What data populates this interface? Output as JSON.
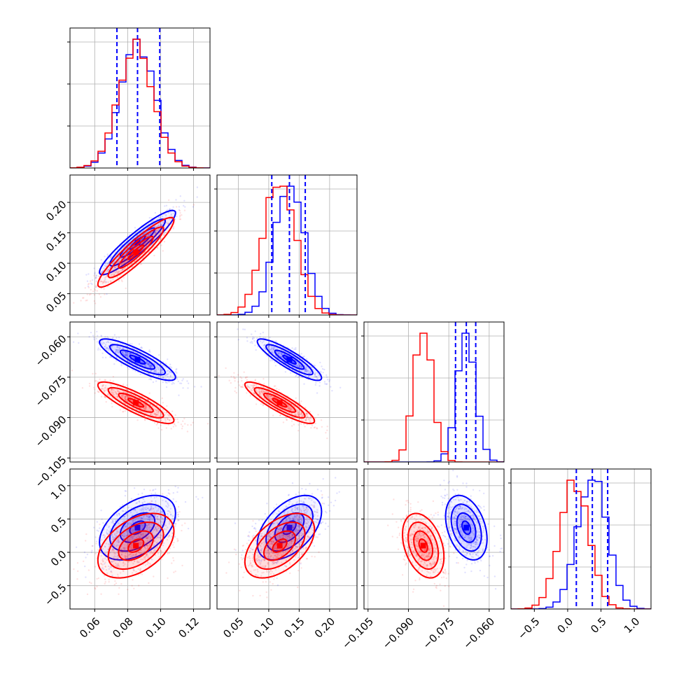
{
  "chart_data": {
    "type": "corner",
    "parameters": [
      {
        "ticks": [
          0.06,
          0.08,
          0.1,
          0.12
        ],
        "tick_labels": [
          "0.06",
          "0.08",
          "0.10",
          "0.12"
        ],
        "range": [
          0.045,
          0.13
        ]
      },
      {
        "ticks": [
          0.05,
          0.1,
          0.15,
          0.2
        ],
        "tick_labels": [
          "0.05",
          "0.10",
          "0.15",
          "0.20"
        ],
        "range": [
          0.015,
          0.245
        ]
      },
      {
        "ticks": [
          -0.105,
          -0.09,
          -0.075,
          -0.06
        ],
        "tick_labels": [
          "−0.105",
          "−0.090",
          "−0.075",
          "−0.060"
        ],
        "range": [
          -0.1065,
          -0.0545
        ]
      },
      {
        "ticks": [
          -0.5,
          0.0,
          0.5,
          1.0
        ],
        "tick_labels": [
          "−0.5",
          "0.0",
          "0.5",
          "1.0"
        ],
        "range": [
          -0.85,
          1.25
        ]
      }
    ],
    "series": [
      {
        "color": "#0000ff",
        "means": [
          0.086,
          0.134,
          -0.0685,
          0.37
        ],
        "sds": [
          0.0105,
          0.024,
          0.0035,
          0.22
        ],
        "quantile_lines": [
          [
            0.0735,
            0.086,
            0.0995
          ],
          [
            0.105,
            0.134,
            0.16
          ],
          [
            -0.0725,
            -0.0685,
            -0.065
          ],
          [
            0.13,
            0.37,
            0.6
          ]
        ]
      },
      {
        "color": "#ff0000",
        "means": [
          0.085,
          0.118,
          -0.0845,
          0.1
        ],
        "sds": [
          0.0105,
          0.026,
          0.0035,
          0.22
        ]
      }
    ],
    "correlations": {
      "0-1": 0.92,
      "0-2": -0.85,
      "1-2": -0.88,
      "0-3": 0.45,
      "1-3": 0.5,
      "2-3": -0.35
    },
    "grid": true,
    "contour_levels": 4,
    "quantiles": [
      0.16,
      0.5,
      0.84
    ]
  }
}
